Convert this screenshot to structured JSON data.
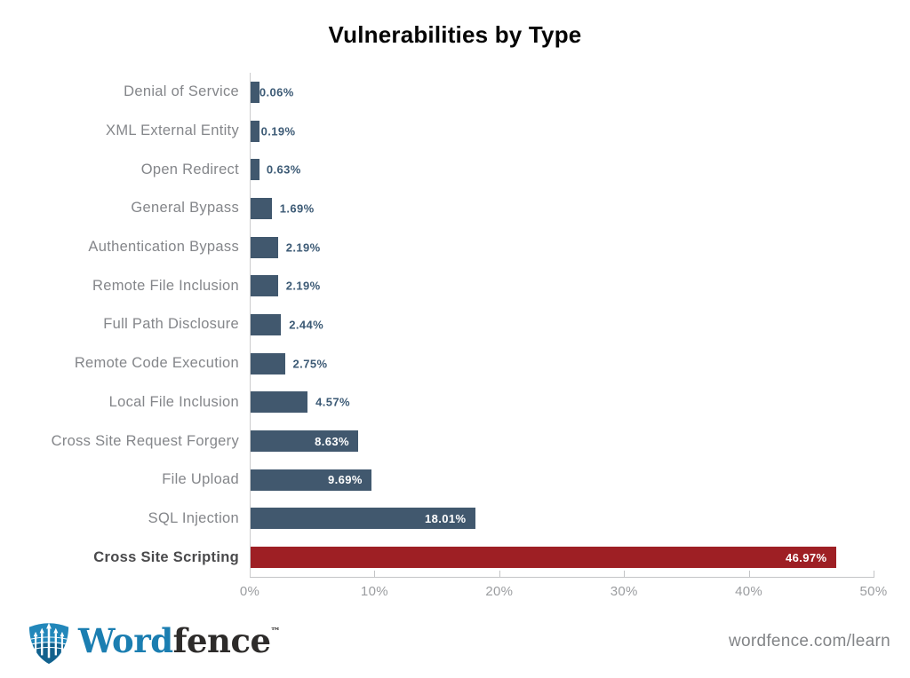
{
  "title": "Vulnerabilities by Type",
  "chart_data": {
    "type": "bar",
    "orientation": "horizontal",
    "title": "Vulnerabilities by Type",
    "categories": [
      "Denial of Service",
      "XML External Entity",
      "Open Redirect",
      "General Bypass",
      "Authentication Bypass",
      "Remote File Inclusion",
      "Full Path Disclosure",
      "Remote Code Execution",
      "Local File Inclusion",
      "Cross Site Request Forgery",
      "File Upload",
      "SQL Injection",
      "Cross Site Scripting"
    ],
    "values": [
      0.06,
      0.19,
      0.63,
      1.69,
      2.19,
      2.19,
      2.44,
      2.75,
      4.57,
      8.63,
      9.69,
      18.01,
      46.97
    ],
    "value_labels": [
      "0.06%",
      "0.19%",
      "0.63%",
      "1.69%",
      "2.19%",
      "2.19%",
      "2.44%",
      "2.75%",
      "4.57%",
      "8.63%",
      "9.69%",
      "18.01%",
      "46.97%"
    ],
    "xlabel": "",
    "ylabel": "",
    "xlim": [
      0,
      50
    ],
    "x_ticks": [
      "0%",
      "10%",
      "20%",
      "30%",
      "40%",
      "50%"
    ],
    "grid": false,
    "legend": false,
    "bar_color": "#41586e",
    "highlight_color": "#9e1f24",
    "highlight_category": "Cross Site Scripting",
    "inside_label_threshold": 8
  },
  "footer": {
    "brand_word": "Word",
    "brand_fence": "fence",
    "trademark": "™",
    "url": "wordfence.com/learn"
  },
  "colors": {
    "bar": "#41586e",
    "highlight": "#9e1f24",
    "value_label": "#3c5a75",
    "category_label": "#84868a",
    "axis": "#c3c4c6",
    "logo_blue": "#1b7eb1",
    "logo_dark": "#2d2b2a"
  }
}
